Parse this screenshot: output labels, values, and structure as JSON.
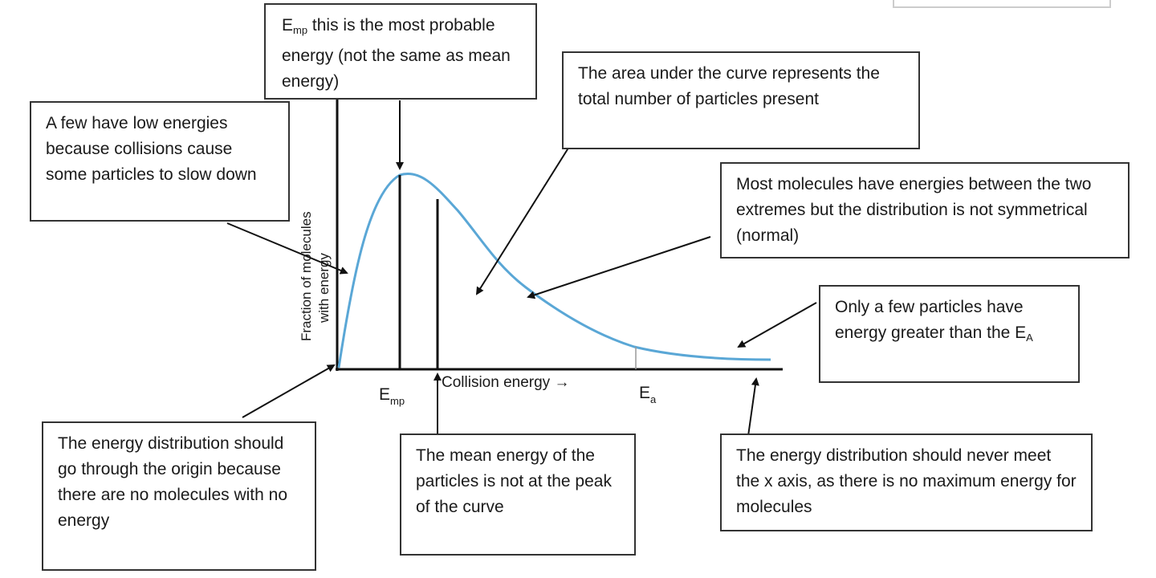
{
  "axes": {
    "y_label_line1": "Fraction of molecules",
    "y_label_line2": "with energy",
    "x_label": "Collision energy →",
    "emp_label": "E",
    "emp_sub": "mp",
    "ea_label": "E",
    "ea_sub": "a"
  },
  "callouts": {
    "emp_title": "E",
    "emp_title_sub": "mp",
    "emp_text": " this is the most probable energy (not the same as mean energy)",
    "low_energies": "A few have low energies because collisions cause some particles to slow down",
    "area_under_curve": "The area under the curve represents the total number of particles present",
    "most_molecules": "Most molecules have energies between the two extremes but the distribution is not symmetrical (normal)",
    "few_particles_text": "Only a few particles have energy greater than the E",
    "few_particles_sub": "A",
    "origin": "The energy distribution should go through the origin because there are no molecules with no energy",
    "mean_energy": "The mean energy of the particles is not at the peak of the curve",
    "never_meet": "The energy distribution should never meet the x axis, as there is no maximum energy for molecules"
  },
  "colors": {
    "curve": "#5aa7d6",
    "axis": "#111111",
    "box_border": "#333333"
  }
}
